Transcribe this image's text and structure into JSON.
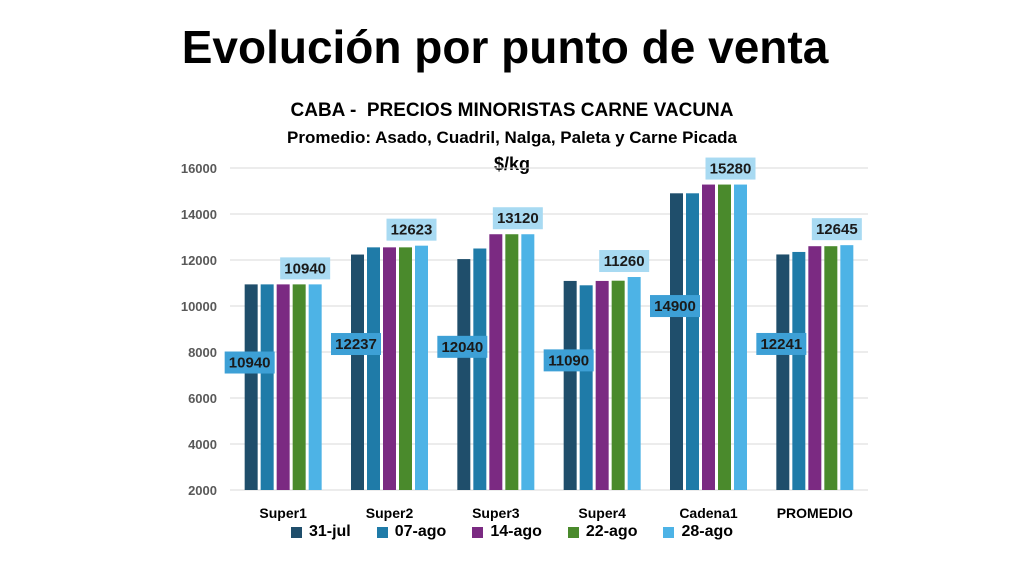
{
  "page": {
    "title": "Evolución por punto de venta"
  },
  "chart_data": {
    "type": "bar",
    "title": "CABA -  PRECIOS MINORISTAS CARNE VACUNA",
    "subtitle": "Promedio: Asado, Cuadril, Nalga, Paleta y Carne Picada",
    "ylabel": "$/kg",
    "xlabel": "",
    "ylim": [
      2000,
      16000
    ],
    "yticks": [
      "2000",
      "4000",
      "6000",
      "8000",
      "10000",
      "12000",
      "14000",
      "16000"
    ],
    "grid": true,
    "legend_position": "bottom",
    "categories": [
      "Super1",
      "Super2",
      "Super3",
      "Super4",
      "Cadena1",
      "PROMEDIO"
    ],
    "series": [
      {
        "name": "31-jul",
        "color": "#1f4e6b",
        "values": [
          10940,
          12237,
          12040,
          11090,
          14900,
          12241
        ]
      },
      {
        "name": "07-ago",
        "color": "#1f7ba8",
        "values": [
          10940,
          12550,
          12500,
          10900,
          14900,
          12350
        ]
      },
      {
        "name": "14-ago",
        "color": "#7b2a82",
        "values": [
          10940,
          12550,
          13120,
          11090,
          15280,
          12600
        ]
      },
      {
        "name": "22-ago",
        "color": "#4a8a2c",
        "values": [
          10940,
          12550,
          13120,
          11100,
          15280,
          12600
        ]
      },
      {
        "name": "28-ago",
        "color": "#4db3e6",
        "values": [
          10940,
          12623,
          13120,
          11260,
          15280,
          12645
        ]
      }
    ],
    "data_labels": {
      "first": [
        "10940",
        "12237",
        "12040",
        "11090",
        "14900",
        "12241"
      ],
      "last": [
        "10940",
        "12623",
        "13120",
        "11260",
        "15280",
        "12645"
      ]
    },
    "label_colors": {
      "first_bg": "#3da0d6",
      "last_bg": "#a8daf2"
    }
  }
}
